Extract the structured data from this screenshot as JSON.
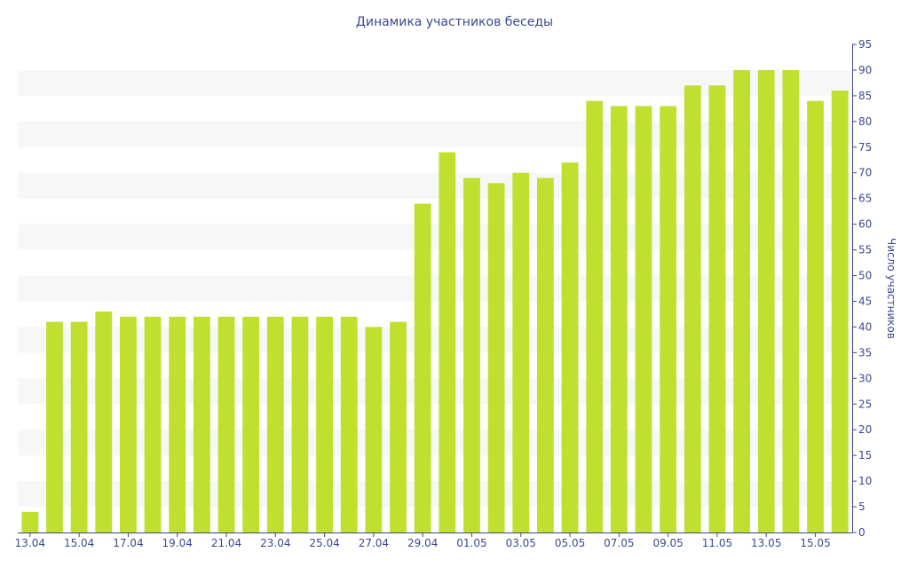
{
  "chart_data": {
    "type": "bar",
    "title": "Динамика участников беседы",
    "xlabel": "",
    "ylabel": "Число участников",
    "ylim": [
      0,
      95
    ],
    "y_tick_step": 5,
    "y_axis_side": "right",
    "grid": "alternating horizontal bands",
    "bar_color": "#bfe02f",
    "band_color": "#f7f7f7",
    "text_color": "#3b4a8c",
    "axis_color": "#3b4a8c",
    "categories": [
      "13.04",
      "14.04",
      "15.04",
      "16.04",
      "17.04",
      "18.04",
      "19.04",
      "20.04",
      "21.04",
      "22.04",
      "23.04",
      "24.04",
      "25.04",
      "26.04",
      "27.04",
      "28.04",
      "29.04",
      "30.04",
      "01.05",
      "02.05",
      "03.05",
      "04.05",
      "05.05",
      "06.05",
      "07.05",
      "08.05",
      "09.05",
      "10.05",
      "11.05",
      "12.05",
      "13.05",
      "14.05",
      "15.05",
      "16.05"
    ],
    "x_tick_labels": [
      "13.04",
      "15.04",
      "17.04",
      "19.04",
      "21.04",
      "23.04",
      "25.04",
      "27.04",
      "29.04",
      "01.05",
      "03.05",
      "05.05",
      "07.05",
      "09.05",
      "11.05",
      "13.05",
      "15.05"
    ],
    "values": [
      4,
      41,
      41,
      43,
      42,
      42,
      42,
      42,
      42,
      42,
      42,
      42,
      42,
      42,
      40,
      41,
      64,
      74,
      69,
      68,
      70,
      69,
      72,
      84,
      83,
      83,
      83,
      87,
      87,
      90,
      90,
      90,
      84,
      86
    ]
  }
}
